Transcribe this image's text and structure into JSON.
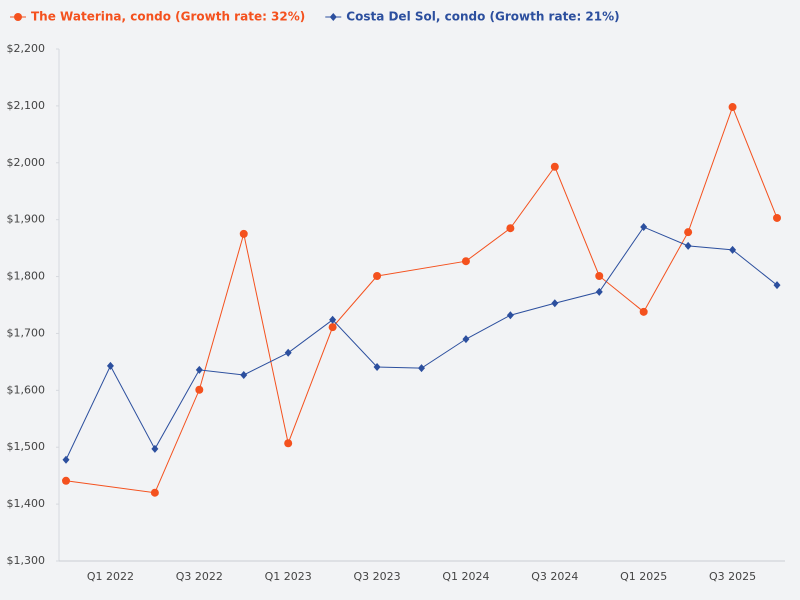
{
  "chart_data": {
    "type": "line",
    "categories": [
      null,
      "Q1 2022",
      null,
      "Q3 2022",
      null,
      "Q1 2023",
      null,
      "Q3 2023",
      null,
      "Q1 2024",
      null,
      "Q3 2024",
      null,
      "Q1 2025",
      null,
      "Q3 2025",
      null
    ],
    "series": [
      {
        "name": "The Waterina, condo (Growth rate: 32%)",
        "color": "#f4511e",
        "marker": "circle",
        "values": [
          1441,
          null,
          1420,
          1601,
          1875,
          1507,
          1711,
          1801,
          null,
          1827,
          1885,
          1993,
          1801,
          1738,
          1878,
          2098,
          1903
        ]
      },
      {
        "name": "Costa Del Sol, condo (Growth rate: 21%)",
        "color": "#2c4f9e",
        "marker": "diamond",
        "values": [
          1478,
          1643,
          1497,
          1636,
          1627,
          1666,
          1724,
          1641,
          1639,
          1690,
          1732,
          1753,
          1773,
          1887,
          1854,
          1847,
          1785
        ]
      }
    ],
    "ylim": [
      1300,
      2200
    ],
    "yticks": [
      {
        "value": 1300,
        "label": "$1,300"
      },
      {
        "value": 1400,
        "label": "$1,400"
      },
      {
        "value": 1500,
        "label": "$1,500"
      },
      {
        "value": 1600,
        "label": "$1,600"
      },
      {
        "value": 1700,
        "label": "$1,700"
      },
      {
        "value": 1800,
        "label": "$1,800"
      },
      {
        "value": 1900,
        "label": "$1,900"
      },
      {
        "value": 2000,
        "label": "$2,000"
      },
      {
        "value": 2100,
        "label": "$2,100"
      },
      {
        "value": 2200,
        "label": "$2,200"
      }
    ],
    "grid": false
  }
}
